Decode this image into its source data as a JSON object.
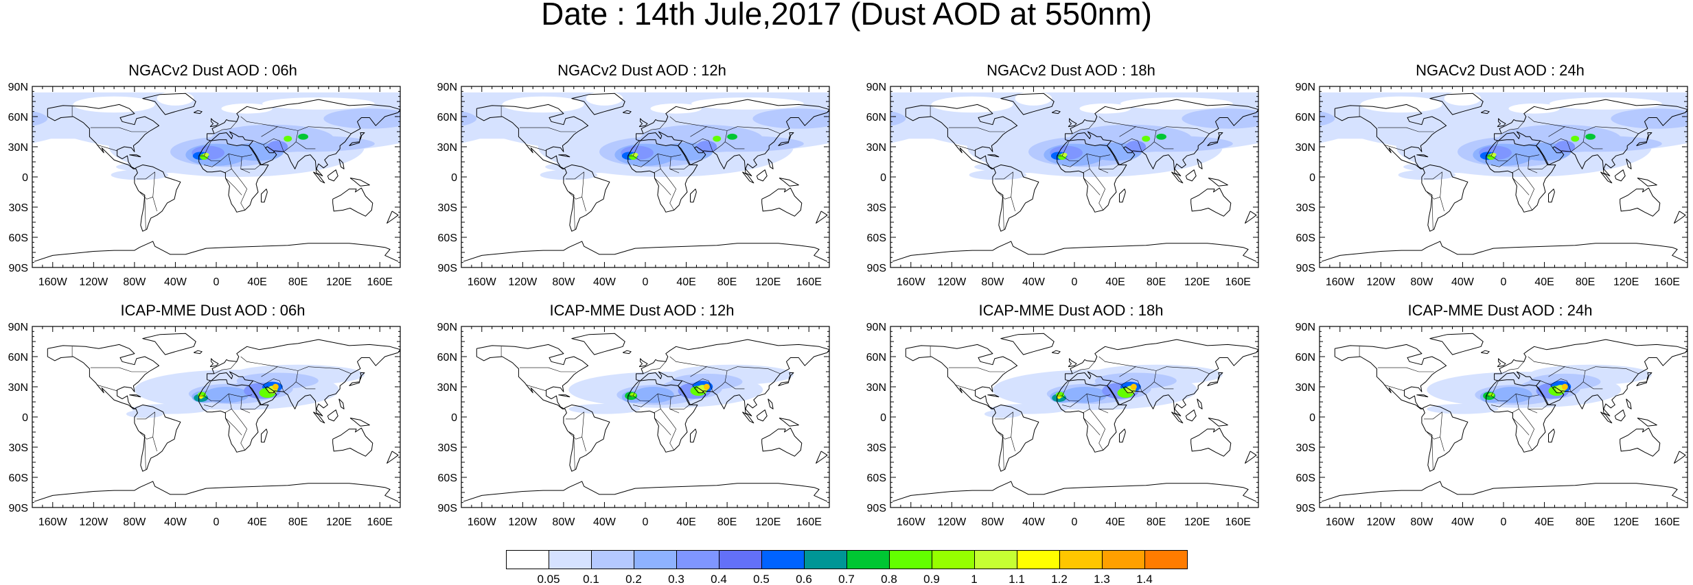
{
  "title": "Date : 14th Jule,2017 (Dust AOD at 550nm)",
  "panels": [
    {
      "title": "NGACv2 Dust AOD : 06h"
    },
    {
      "title": "NGACv2 Dust AOD : 12h"
    },
    {
      "title": "NGACv2 Dust AOD : 18h"
    },
    {
      "title": "NGACv2 Dust AOD : 24h"
    },
    {
      "title": "ICAP-MME Dust AOD : 06h"
    },
    {
      "title": "ICAP-MME Dust AOD : 12h"
    },
    {
      "title": "ICAP-MME Dust AOD : 18h"
    },
    {
      "title": "ICAP-MME Dust AOD : 24h"
    }
  ],
  "lat_labels": [
    "90N",
    "60N",
    "30N",
    "0",
    "30S",
    "60S",
    "90S"
  ],
  "lon_labels": [
    "160W",
    "120W",
    "80W",
    "40W",
    "0",
    "40E",
    "80E",
    "120E",
    "160E"
  ],
  "colorbar": {
    "labels": [
      "0.05",
      "0.1",
      "0.2",
      "0.3",
      "0.4",
      "0.5",
      "0.6",
      "0.7",
      "0.8",
      "0.9",
      "1",
      "1.1",
      "1.2",
      "1.3",
      "1.4"
    ],
    "colors": [
      "#ffffff",
      "#d6e2ff",
      "#b5c9ff",
      "#8eb2ff",
      "#7f96ff",
      "#6370f8",
      "#0063ff",
      "#009696",
      "#00c633",
      "#63ff00",
      "#96ff00",
      "#c6ff33",
      "#ffff00",
      "#ffc600",
      "#ffa000",
      "#ff7c00",
      "#ff1900"
    ]
  }
}
